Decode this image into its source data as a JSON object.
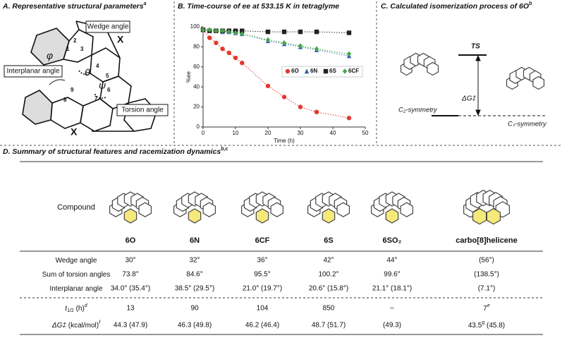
{
  "panel_a": {
    "title": "A. Representative structural parameters",
    "note": "a",
    "labels": {
      "wedge": "Wedge angle",
      "interplanar": "Interplanar angle",
      "torsion": "Torsion angle",
      "x_top": "X",
      "x_bottom": "X",
      "phi": "φ",
      "theta": "θ",
      "psi": "ψ"
    },
    "atoms": [
      "1",
      "2",
      "3",
      "4",
      "5",
      "6",
      "7",
      "8",
      "9"
    ]
  },
  "panel_b": {
    "title": "B. Time-course of ee at 533.15 K in tetraglyme",
    "chart_data": {
      "type": "scatter",
      "x_label": "Time (h)",
      "y_label": "%ee",
      "xlim": [
        0,
        50
      ],
      "xticks": [
        0,
        10,
        20,
        30,
        40,
        50
      ],
      "ylim": [
        0,
        100
      ],
      "yticks": [
        0,
        20,
        40,
        60,
        80,
        100
      ],
      "legend": "center-right",
      "series": [
        {
          "name": "6O",
          "color": "#e8362c",
          "marker": "circle",
          "x": [
            0,
            2,
            4,
            6,
            8,
            10,
            12,
            20,
            25,
            30,
            35,
            45
          ],
          "values": [
            97,
            89,
            84,
            78,
            74,
            69,
            64,
            41,
            30,
            20,
            15,
            9
          ]
        },
        {
          "name": "6N",
          "color": "#3d5ea8",
          "marker": "triangle",
          "x": [
            0,
            2,
            4,
            6,
            8,
            10,
            12,
            20,
            25,
            30,
            35,
            45
          ],
          "values": [
            97,
            97,
            96,
            95,
            95,
            94,
            93,
            86,
            83,
            80,
            77,
            71
          ]
        },
        {
          "name": "6S",
          "color": "#222222",
          "marker": "square",
          "x": [
            0,
            2,
            4,
            6,
            8,
            10,
            12,
            20,
            25,
            30,
            35,
            45
          ],
          "values": [
            97,
            96,
            96,
            96,
            96,
            96,
            96,
            95,
            95,
            95,
            95,
            94
          ]
        },
        {
          "name": "6CF",
          "color": "#46a84a",
          "marker": "diamond",
          "x": [
            0,
            2,
            4,
            6,
            8,
            10,
            12,
            20,
            25,
            30,
            35,
            45
          ],
          "values": [
            97,
            97,
            96,
            96,
            95,
            94,
            93,
            87,
            84,
            81,
            78,
            73
          ]
        }
      ]
    }
  },
  "panel_c": {
    "title": "C. Calculated isomerization process of 6O",
    "note": "b",
    "labels": {
      "ts": "TS",
      "dg": "ΔG‡",
      "left": "C₂-symmetry",
      "right": "Cₛ-symmetry"
    }
  },
  "panel_d": {
    "title": "D. Summary of structural features and racemization dynamics",
    "note": "b,c",
    "header": "Compound",
    "columns": [
      "6O",
      "6N",
      "6CF",
      "6S",
      "6SO₂",
      "carbo[8]helicene"
    ],
    "rows": [
      {
        "label": {
          "main": "Wedge angle"
        },
        "cells": [
          "30°",
          "32°",
          "36°",
          "42°",
          "44°",
          "(56°)"
        ]
      },
      {
        "label": {
          "main": "Sum of torsion angles"
        },
        "cells": [
          "73.8°",
          "84.6°",
          "95.5°",
          "100.2°",
          "99.6°",
          "(138.5°)"
        ]
      },
      {
        "label": {
          "main": "Interplanar angle"
        },
        "cells": [
          "34.0° (35.4°)",
          "38.5° (29.5°)",
          "21.0° (19.7°)",
          "20.6° (15.8°)",
          "21.1° (18.1°)",
          "(7.1°)"
        ]
      },
      {
        "label": {
          "main": "t",
          "sub": "1/2",
          "unit": " (h)",
          "note": "d"
        },
        "cells": [
          "13",
          "90",
          "104",
          "850",
          "–",
          {
            "text": "7",
            "note": "e"
          }
        ]
      },
      {
        "label": {
          "main": "ΔG‡",
          "unit": " (kcal/mol)",
          "note": "f"
        },
        "cells": [
          "44.3 (47.9)",
          "46.3 (49.8)",
          "46.2 (46.4)",
          "48.7 (51.7)",
          "(49.3)",
          {
            "text": "43.5",
            "note": "g",
            "rest": " (45.8)"
          }
        ]
      }
    ]
  }
}
